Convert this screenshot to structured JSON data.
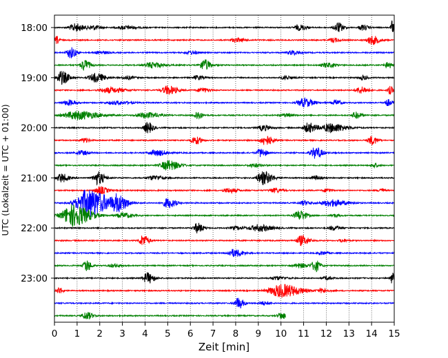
{
  "chart_data": {
    "type": "line",
    "subtype": "helicorder",
    "xlabel": "Zeit  [min]",
    "ylabel": "UTC (Lokalzeit = UTC + 01:00)",
    "xlim": [
      0,
      15
    ],
    "x_ticks": [
      "0",
      "1",
      "2",
      "3",
      "4",
      "5",
      "6",
      "7",
      "8",
      "9",
      "10",
      "11",
      "12",
      "13",
      "14",
      "15"
    ],
    "y_tick_labels": [
      "18:00",
      "19:00",
      "20:00",
      "21:00",
      "22:00",
      "23:00"
    ],
    "grid": "vertical dotted",
    "colors_cycle": [
      "#000000",
      "#ff0000",
      "#0000ff",
      "#008000"
    ],
    "trace_start_time": "18:00",
    "trace_interval_min": 15,
    "traces": [
      {
        "start": "18:00",
        "color": "black",
        "end_min": 15,
        "events": [
          [
            0.9,
            1.0,
            0.35
          ],
          [
            1.7,
            0.8,
            0.2
          ],
          [
            3.1,
            1.2,
            0.15
          ],
          [
            10.8,
            0.8,
            0.25
          ],
          [
            12.5,
            0.6,
            0.45
          ],
          [
            13.6,
            0.6,
            0.25
          ],
          [
            14.9,
            0.2,
            0.6
          ]
        ]
      },
      {
        "start": "18:15",
        "color": "red",
        "end_min": 15,
        "events": [
          [
            0.1,
            0.3,
            0.35
          ],
          [
            8.0,
            1.0,
            0.15
          ],
          [
            12.3,
            0.6,
            0.2
          ],
          [
            14.0,
            0.8,
            0.4
          ]
        ]
      },
      {
        "start": "18:30",
        "color": "blue",
        "end_min": 15,
        "events": [
          [
            0.7,
            0.6,
            0.5
          ],
          [
            2.0,
            0.8,
            0.15
          ],
          [
            6.0,
            0.8,
            0.15
          ],
          [
            10.5,
            0.8,
            0.2
          ]
        ]
      },
      {
        "start": "18:45",
        "color": "green",
        "end_min": 15,
        "events": [
          [
            1.3,
            0.6,
            0.5
          ],
          [
            4.3,
            1.2,
            0.25
          ],
          [
            6.6,
            0.7,
            0.5
          ],
          [
            12.0,
            1.0,
            0.2
          ],
          [
            14.7,
            0.5,
            0.3
          ]
        ]
      },
      {
        "start": "19:00",
        "color": "black",
        "end_min": 15,
        "events": [
          [
            0.3,
            0.8,
            0.6
          ],
          [
            1.8,
            1.0,
            0.4
          ],
          [
            3.2,
            0.8,
            0.15
          ],
          [
            6.3,
            0.6,
            0.2
          ],
          [
            10.2,
            0.8,
            0.15
          ],
          [
            13.6,
            0.5,
            0.2
          ]
        ]
      },
      {
        "start": "19:15",
        "color": "red",
        "end_min": 15,
        "events": [
          [
            2.4,
            1.5,
            0.25
          ],
          [
            5.0,
            1.0,
            0.4
          ],
          [
            6.5,
            0.8,
            0.2
          ],
          [
            13.5,
            0.8,
            0.3
          ],
          [
            14.8,
            0.4,
            0.35
          ]
        ]
      },
      {
        "start": "19:30",
        "color": "blue",
        "end_min": 15,
        "events": [
          [
            0.6,
            0.8,
            0.25
          ],
          [
            2.7,
            1.5,
            0.15
          ],
          [
            11.0,
            1.0,
            0.4
          ],
          [
            12.4,
            0.6,
            0.25
          ],
          [
            14.7,
            0.5,
            0.3
          ]
        ]
      },
      {
        "start": "19:45",
        "color": "green",
        "end_min": 15,
        "events": [
          [
            1.0,
            2.2,
            0.4
          ],
          [
            4.0,
            1.5,
            0.25
          ],
          [
            6.3,
            0.5,
            0.4
          ],
          [
            10.2,
            0.8,
            0.15
          ],
          [
            13.3,
            0.6,
            0.3
          ]
        ]
      },
      {
        "start": "20:00",
        "color": "black",
        "end_min": 15,
        "events": [
          [
            4.1,
            0.6,
            0.5
          ],
          [
            9.2,
            0.8,
            0.25
          ],
          [
            11.2,
            0.8,
            0.45
          ],
          [
            12.2,
            1.6,
            0.4
          ]
        ]
      },
      {
        "start": "20:15",
        "color": "red",
        "end_min": 15,
        "events": [
          [
            1.3,
            0.6,
            0.2
          ],
          [
            6.2,
            0.7,
            0.35
          ],
          [
            9.3,
            0.8,
            0.45
          ],
          [
            14.0,
            0.6,
            0.4
          ]
        ]
      },
      {
        "start": "20:30",
        "color": "blue",
        "end_min": 15,
        "events": [
          [
            1.2,
            0.8,
            0.2
          ],
          [
            4.5,
            1.2,
            0.25
          ],
          [
            9.1,
            0.6,
            0.4
          ],
          [
            11.5,
            0.8,
            0.5
          ]
        ]
      },
      {
        "start": "20:45",
        "color": "green",
        "end_min": 15,
        "events": [
          [
            5.0,
            1.2,
            0.45
          ],
          [
            8.8,
            1.0,
            0.15
          ],
          [
            14.1,
            0.5,
            0.2
          ]
        ]
      },
      {
        "start": "21:00",
        "color": "black",
        "end_min": 15,
        "events": [
          [
            0.3,
            0.7,
            0.4
          ],
          [
            1.9,
            0.7,
            0.6
          ],
          [
            4.4,
            1.2,
            0.2
          ],
          [
            9.2,
            1.0,
            0.6
          ],
          [
            11.5,
            0.6,
            0.2
          ]
        ]
      },
      {
        "start": "21:15",
        "color": "red",
        "end_min": 15,
        "events": [
          [
            2.0,
            0.8,
            0.35
          ],
          [
            7.7,
            1.0,
            0.2
          ],
          [
            9.7,
            0.8,
            0.2
          ],
          [
            12.0,
            0.6,
            0.15
          ],
          [
            14.4,
            0.4,
            0.2
          ]
        ]
      },
      {
        "start": "21:30",
        "color": "blue",
        "end_min": 15,
        "events": [
          [
            1.5,
            2.0,
            1.3
          ],
          [
            2.8,
            1.0,
            0.7
          ],
          [
            5.0,
            0.8,
            0.45
          ],
          [
            11.0,
            0.7,
            0.2
          ],
          [
            12.2,
            1.6,
            0.3
          ]
        ]
      },
      {
        "start": "21:45",
        "color": "green",
        "end_min": 15,
        "events": [
          [
            0.8,
            1.8,
            1.0
          ],
          [
            3.0,
            1.0,
            0.25
          ],
          [
            10.8,
            0.8,
            0.45
          ],
          [
            12.3,
            0.6,
            0.15
          ]
        ]
      },
      {
        "start": "22:00",
        "color": "black",
        "end_min": 15,
        "events": [
          [
            6.3,
            0.6,
            0.45
          ],
          [
            8.0,
            1.0,
            0.15
          ],
          [
            9.0,
            1.4,
            0.3
          ],
          [
            12.3,
            0.8,
            0.2
          ]
        ]
      },
      {
        "start": "22:15",
        "color": "red",
        "end_min": 15,
        "events": [
          [
            3.9,
            0.6,
            0.5
          ],
          [
            10.9,
            0.8,
            0.45
          ],
          [
            12.7,
            0.5,
            0.15
          ]
        ]
      },
      {
        "start": "22:30",
        "color": "blue",
        "end_min": 15,
        "events": [
          [
            7.9,
            1.0,
            0.35
          ],
          [
            11.8,
            0.6,
            0.15
          ]
        ]
      },
      {
        "start": "22:45",
        "color": "green",
        "end_min": 15,
        "events": [
          [
            1.4,
            0.5,
            0.55
          ],
          [
            2.6,
            0.8,
            0.15
          ],
          [
            10.8,
            1.0,
            0.2
          ],
          [
            11.5,
            0.5,
            0.55
          ]
        ]
      },
      {
        "start": "23:00",
        "color": "black",
        "end_min": 15,
        "events": [
          [
            4.1,
            0.7,
            0.5
          ],
          [
            9.8,
            1.0,
            0.15
          ],
          [
            12.0,
            0.6,
            0.15
          ],
          [
            14.9,
            0.2,
            0.55
          ]
        ]
      },
      {
        "start": "23:15",
        "color": "red",
        "end_min": 15,
        "events": [
          [
            0.2,
            0.4,
            0.3
          ],
          [
            10.0,
            2.0,
            0.6
          ],
          [
            11.8,
            0.6,
            0.2
          ]
        ]
      },
      {
        "start": "23:30",
        "color": "blue",
        "end_min": 15,
        "events": [
          [
            8.1,
            0.6,
            0.5
          ],
          [
            9.2,
            0.6,
            0.15
          ]
        ]
      },
      {
        "start": "23:45",
        "color": "green",
        "end_min": 10.2,
        "events": [
          [
            1.4,
            0.7,
            0.35
          ],
          [
            10.0,
            0.6,
            0.3
          ]
        ]
      }
    ]
  }
}
